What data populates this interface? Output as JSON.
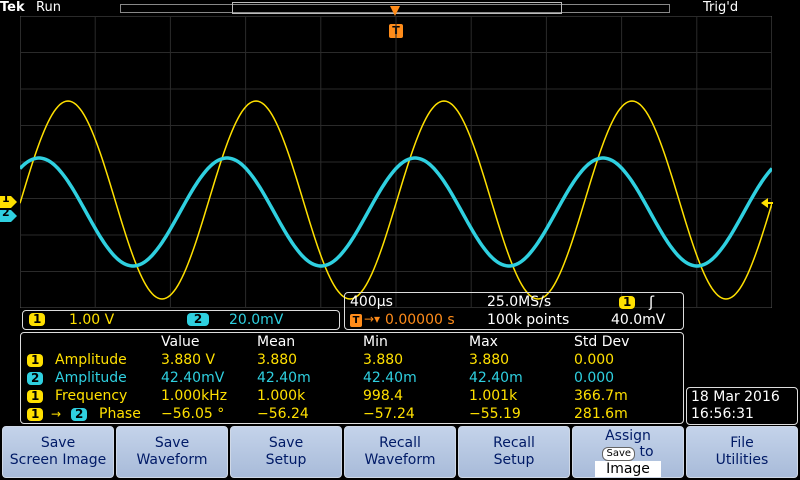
{
  "header": {
    "brand": "Tek",
    "run_state": "Run",
    "trigger_state": "Trig'd",
    "trigger_marker": "T"
  },
  "markers": {
    "ch1": "1",
    "ch2": "2"
  },
  "channels": {
    "ch1": {
      "badge": "1",
      "scale": "1.00 V",
      "color": "#ffe000"
    },
    "ch2": {
      "badge": "2",
      "scale": "20.0mV",
      "color": "#2fd0e0"
    }
  },
  "timebase": {
    "time_per_div": "400µs",
    "sample_rate": "25.0MS/s",
    "trigger_source": "1",
    "trigger_slope": "ʃ",
    "trigger_position": "0.00000 s",
    "record_length": "100k points",
    "trigger_level": "40.0mV"
  },
  "measurements": {
    "headers": [
      "Value",
      "Mean",
      "Min",
      "Max",
      "Std Dev"
    ],
    "rows": [
      {
        "src": "1",
        "src2": "",
        "label": "Amplitude",
        "color": "#ffe000",
        "values": [
          "3.880 V",
          "3.880",
          "3.880",
          "3.880",
          "0.000"
        ]
      },
      {
        "src": "2",
        "src2": "",
        "label": "Amplitude",
        "color": "#2fd0e0",
        "values": [
          "42.40mV",
          "42.40m",
          "42.40m",
          "42.40m",
          "0.000"
        ]
      },
      {
        "src": "1",
        "src2": "",
        "label": "Frequency",
        "color": "#ffe000",
        "values": [
          "1.000kHz",
          "1.000k",
          "998.4",
          "1.001k",
          "366.7m"
        ]
      },
      {
        "src": "1",
        "src2": "2",
        "label": "Phase",
        "color": "#ffe000",
        "values": [
          "−56.05 °",
          "−56.24",
          "−57.24",
          "−55.19",
          "281.6m"
        ]
      }
    ]
  },
  "datetime": {
    "date": "18 Mar 2016",
    "time": "16:56:31"
  },
  "softkeys": [
    {
      "line1": "Save",
      "line2": "Screen Image"
    },
    {
      "line1": "Save",
      "line2": "Waveform"
    },
    {
      "line1": "Save",
      "line2": "Setup"
    },
    {
      "line1": "Recall",
      "line2": "Waveform"
    },
    {
      "line1": "Recall",
      "line2": "Setup"
    },
    {
      "line1": "Assign",
      "chip": "Save",
      "line2": "to",
      "line3": "Image"
    },
    {
      "line1": "File",
      "line2": "Utilities"
    }
  ]
}
